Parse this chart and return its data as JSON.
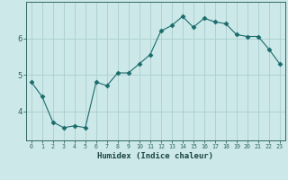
{
  "x": [
    0,
    1,
    2,
    3,
    4,
    5,
    6,
    7,
    8,
    9,
    10,
    11,
    12,
    13,
    14,
    15,
    16,
    17,
    18,
    19,
    20,
    21,
    22,
    23
  ],
  "y": [
    4.8,
    4.4,
    3.7,
    3.55,
    3.6,
    3.55,
    4.8,
    4.7,
    5.05,
    5.05,
    5.3,
    5.55,
    6.2,
    6.35,
    6.6,
    6.3,
    6.55,
    6.45,
    6.4,
    6.1,
    6.05,
    6.05,
    5.7,
    5.3
  ],
  "bg_color": "#cce8e8",
  "line_color": "#1a6b6b",
  "marker_color": "#1a6b6b",
  "grid_color": "#aacece",
  "axis_color": "#336666",
  "xlabel": "Humidex (Indice chaleur)",
  "ytick_labels": [
    "4",
    "5",
    "6"
  ],
  "ytick_vals": [
    4,
    5,
    6
  ],
  "ylim": [
    3.2,
    7.0
  ],
  "xlim": [
    -0.5,
    23.5
  ],
  "font_color": "#1a4444"
}
